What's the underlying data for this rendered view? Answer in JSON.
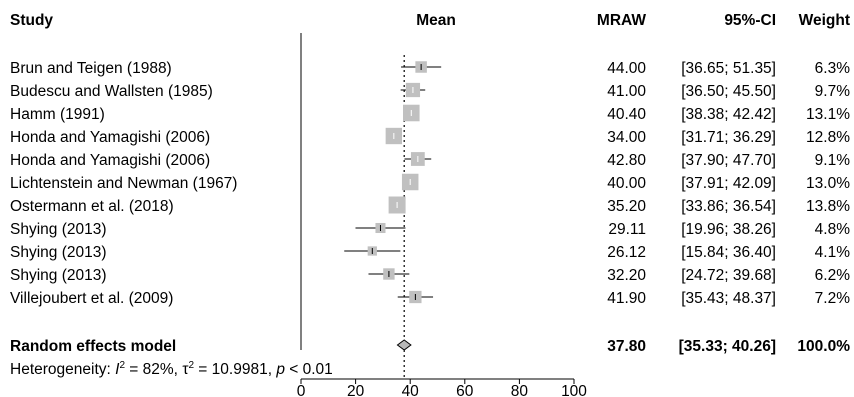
{
  "headers": {
    "study": "Study",
    "mean": "Mean",
    "mraw": "MRAW",
    "ci": "95%-CI",
    "weight": "Weight"
  },
  "colors": {
    "box": "#c0c0c0",
    "line": "#000000",
    "diamond": "#b8b8b8"
  },
  "chart_data": {
    "type": "forest",
    "xlim": [
      0,
      100
    ],
    "x_ticks": [
      "0",
      "20",
      "40",
      "60",
      "80",
      "100"
    ],
    "reference_line": 37.8,
    "studies": [
      {
        "study": "Brun and Teigen (1988)",
        "mean": 44.0,
        "lower": 36.65,
        "upper": 51.35,
        "weight": 6.3,
        "mraw_text": "44.00",
        "ci_text": "[36.65; 51.35]",
        "weight_text": "6.3%"
      },
      {
        "study": "Budescu and Wallsten (1985)",
        "mean": 41.0,
        "lower": 36.5,
        "upper": 45.5,
        "weight": 9.7,
        "mraw_text": "41.00",
        "ci_text": "[36.50; 45.50]",
        "weight_text": "9.7%"
      },
      {
        "study": "Hamm (1991)",
        "mean": 40.4,
        "lower": 38.38,
        "upper": 42.42,
        "weight": 13.1,
        "mraw_text": "40.40",
        "ci_text": "[38.38; 42.42]",
        "weight_text": "13.1%"
      },
      {
        "study": "Honda and Yamagishi (2006)",
        "mean": 34.0,
        "lower": 31.71,
        "upper": 36.29,
        "weight": 12.8,
        "mraw_text": "34.00",
        "ci_text": "[31.71; 36.29]",
        "weight_text": "12.8%"
      },
      {
        "study": "Honda and Yamagishi (2006)",
        "mean": 42.8,
        "lower": 37.9,
        "upper": 47.7,
        "weight": 9.1,
        "mraw_text": "42.80",
        "ci_text": "[37.90; 47.70]",
        "weight_text": "9.1%"
      },
      {
        "study": "Lichtenstein and Newman (1967)",
        "mean": 40.0,
        "lower": 37.91,
        "upper": 42.09,
        "weight": 13.0,
        "mraw_text": "40.00",
        "ci_text": "[37.91; 42.09]",
        "weight_text": "13.0%"
      },
      {
        "study": "Ostermann et al. (2018)",
        "mean": 35.2,
        "lower": 33.86,
        "upper": 36.54,
        "weight": 13.8,
        "mraw_text": "35.20",
        "ci_text": "[33.86; 36.54]",
        "weight_text": "13.8%"
      },
      {
        "study": "Shying (2013)",
        "mean": 29.11,
        "lower": 19.96,
        "upper": 38.26,
        "weight": 4.8,
        "mraw_text": "29.11",
        "ci_text": "[19.96; 38.26]",
        "weight_text": "4.8%"
      },
      {
        "study": "Shying (2013)",
        "mean": 26.12,
        "lower": 15.84,
        "upper": 36.4,
        "weight": 4.1,
        "mraw_text": "26.12",
        "ci_text": "[15.84; 36.40]",
        "weight_text": "4.1%"
      },
      {
        "study": "Shying (2013)",
        "mean": 32.2,
        "lower": 24.72,
        "upper": 39.68,
        "weight": 6.2,
        "mraw_text": "32.20",
        "ci_text": "[24.72; 39.68]",
        "weight_text": "6.2%"
      },
      {
        "study": "Villejoubert et al. (2009)",
        "mean": 41.9,
        "lower": 35.43,
        "upper": 48.37,
        "weight": 7.2,
        "mraw_text": "41.90",
        "ci_text": "[35.43; 48.37]",
        "weight_text": "7.2%"
      }
    ],
    "summary": {
      "label": "Random effects model",
      "mean": 37.8,
      "lower": 35.33,
      "upper": 40.26,
      "mraw_text": "37.80",
      "ci_text": "[35.33; 40.26]",
      "weight_text": "100.0%"
    },
    "heterogeneity": {
      "prefix": "Heterogeneity: ",
      "i2_sym": "I",
      "i2_value": " = 82%, ",
      "tau_sym": "τ",
      "tau_value": " = 10.9981, ",
      "p_sym": "p",
      "p_value": " < 0.01",
      "sup": "2"
    }
  }
}
